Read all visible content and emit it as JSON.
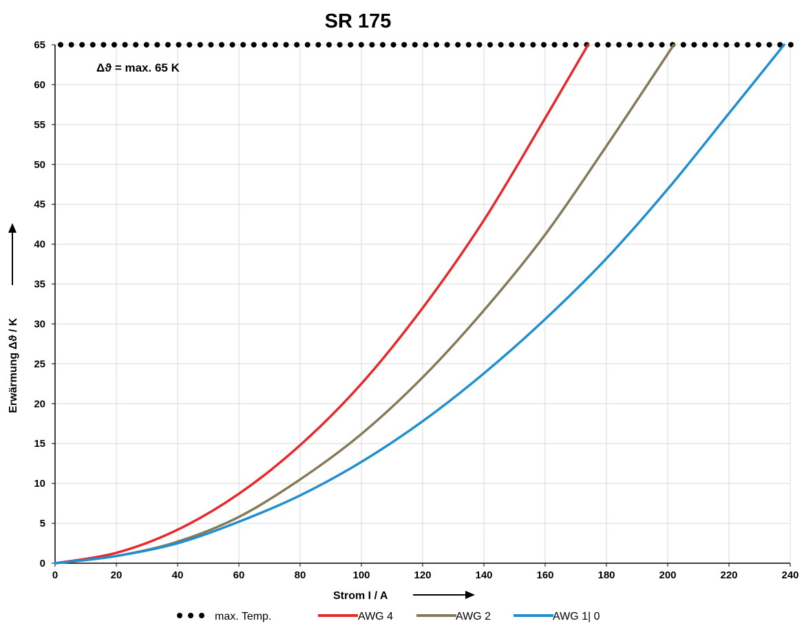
{
  "chart_data": {
    "type": "line",
    "title": "SR 175",
    "xlabel": "Strom I / A",
    "ylabel": "Erwärmung Δϑ / K",
    "xlim": [
      0,
      240
    ],
    "ylim": [
      0,
      65
    ],
    "x_ticks": [
      "0",
      "20",
      "40",
      "60",
      "80",
      "100",
      "120",
      "140",
      "160",
      "180",
      "200",
      "220",
      "240"
    ],
    "y_ticks": [
      "0",
      "5",
      "10",
      "15",
      "20",
      "25",
      "30",
      "35",
      "40",
      "45",
      "50",
      "55",
      "60",
      "65"
    ],
    "grid": true,
    "legend_position": "bottom",
    "annotation": "Δϑ = max. 65 K",
    "series": [
      {
        "name": "max. Temp.",
        "style": "dotted",
        "color": "#000000",
        "x": [
          0,
          240
        ],
        "y": [
          65,
          65
        ]
      },
      {
        "name": "AWG 4",
        "style": "solid",
        "color": "#e8292c",
        "x": [
          0,
          20,
          40,
          60,
          80,
          100,
          120,
          140,
          160,
          174
        ],
        "y": [
          0,
          1.3,
          4.2,
          8.7,
          14.8,
          22.5,
          32.0,
          43.0,
          55.8,
          65
        ]
      },
      {
        "name": "AWG 2",
        "style": "solid",
        "color": "#857a58",
        "x": [
          0,
          20,
          40,
          60,
          80,
          100,
          120,
          140,
          160,
          180,
          202
        ],
        "y": [
          0,
          0.9,
          2.7,
          5.8,
          10.5,
          16.2,
          23.3,
          31.7,
          41.2,
          52.3,
          65
        ]
      },
      {
        "name": "AWG 1| 0",
        "style": "solid",
        "color": "#1f8fcf",
        "x": [
          0,
          20,
          40,
          60,
          80,
          100,
          120,
          140,
          160,
          180,
          200,
          220,
          238
        ],
        "y": [
          0,
          0.9,
          2.5,
          5.2,
          8.5,
          12.7,
          17.8,
          23.8,
          30.6,
          38.2,
          46.9,
          56.4,
          65
        ]
      }
    ]
  }
}
